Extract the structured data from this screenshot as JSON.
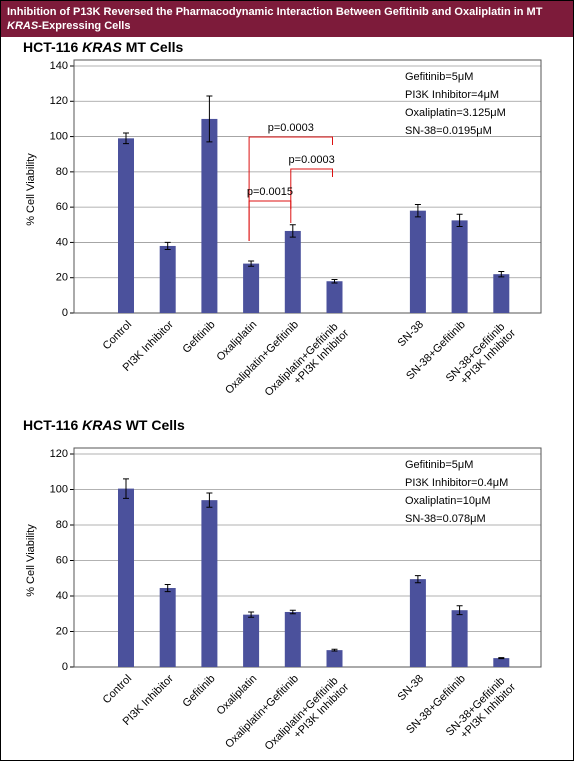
{
  "header": {
    "title_parts": [
      "Inhibition of P13K Reversed the Pharmacodynamic Interaction Between Gefitinib and Oxaliplatin in MT ",
      "KRAS",
      "-Expressing Cells"
    ]
  },
  "chart_data": [
    {
      "type": "bar",
      "title_parts": [
        "HCT-116 ",
        "KRAS",
        " MT Cells"
      ],
      "y_label": "% Cell Viability",
      "categories": [
        "Control",
        "PI3K Inhibitor",
        "Gefitinib",
        "Oxaliplatin",
        "Oxaliplatin+Gefitinib",
        "Oxaliplatin+Gefitinib +PI3K Inhibitor",
        null,
        "SN-38",
        "SN-38+Gefitinib",
        "SN-38+Gefitinib +PI3K Inhibitor"
      ],
      "values": [
        99,
        38,
        110,
        28,
        46.5,
        18,
        null,
        58,
        52.5,
        22
      ],
      "errors": [
        3,
        2,
        13,
        1.5,
        3.5,
        1,
        null,
        3.5,
        3.5,
        1.5
      ],
      "color": "#4b519c",
      "ylim": [
        0,
        140
      ],
      "yticks": [
        0,
        20,
        40,
        60,
        80,
        100,
        120,
        140
      ],
      "grid": true,
      "notes": [
        "Gefitinib=5μM",
        "PI3K Inhibitor=4μM",
        "Oxaliplatin=3.125μM",
        "SN-38=0.0195μM"
      ],
      "p_values": [
        "p=0.0003",
        "p=0.0003",
        "p=0.0015"
      ]
    },
    {
      "type": "bar",
      "title_parts": [
        "HCT-116 ",
        "KRAS",
        " WT Cells"
      ],
      "y_label": "% Cell Viability",
      "categories": [
        "Control",
        "PI3K Inhibitor",
        "Gefitinib",
        "Oxaliplatin",
        "Oxaliplatin+Gefitinib",
        "Oxaliplatin+Gefitinib +PI3K Inhibitor",
        null,
        "SN-38",
        "SN-38+Gefitinib",
        "SN-38+Gefitinib +PI3K Inhibitor"
      ],
      "values": [
        100.5,
        44.5,
        94,
        29.5,
        31,
        9.5,
        null,
        49.5,
        32,
        5
      ],
      "errors": [
        5.5,
        2,
        4,
        1.5,
        1,
        0.5,
        null,
        2,
        2.5,
        0.3
      ],
      "color": "#4b519c",
      "ylim": [
        0,
        120
      ],
      "yticks": [
        0,
        20,
        40,
        60,
        80,
        100,
        120
      ],
      "grid": true,
      "notes": [
        "Gefitinib=5μM",
        "PI3K Inhibitor=0.4μM",
        "Oxaliplatin=10μM",
        "SN-38=0.078μM"
      ]
    }
  ]
}
